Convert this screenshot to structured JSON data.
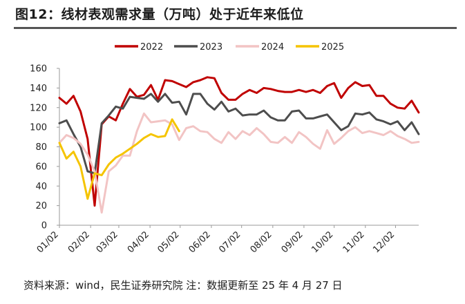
{
  "title": "图12：线材表观需求量（万吨）处于近年来低位",
  "source": "资料来源：wind，民生证券研究院 注：数据更新至 25 年 4 月 27 日",
  "chart_data": {
    "type": "line",
    "title": "线材表观需求量（万吨）",
    "xlabel": "",
    "ylabel": "",
    "ylim": [
      0,
      160
    ],
    "yticks": [
      0,
      20,
      40,
      60,
      80,
      100,
      120,
      140,
      160
    ],
    "xlim": [
      0,
      51
    ],
    "x_tick_labels": [
      {
        "label": "01/02",
        "week": 0
      },
      {
        "label": "02/02",
        "week": 4.43
      },
      {
        "label": "03/02",
        "week": 8.43
      },
      {
        "label": "04/02",
        "week": 12.86
      },
      {
        "label": "05/02",
        "week": 17.14
      },
      {
        "label": "06/02",
        "week": 21.57
      },
      {
        "label": "07/02",
        "week": 25.86
      },
      {
        "label": "08/02",
        "week": 30.29
      },
      {
        "label": "09/02",
        "week": 34.71
      },
      {
        "label": "10/02",
        "week": 39
      },
      {
        "label": "11/02",
        "week": 43.43
      },
      {
        "label": "12/02",
        "week": 47.71
      }
    ],
    "legend_position": "top",
    "grid": false,
    "series": [
      {
        "name": "2022",
        "color": "#c00000",
        "values": [
          130,
          124,
          132,
          116,
          88,
          20,
          103,
          111,
          107,
          124,
          139,
          131,
          133,
          143,
          128,
          148,
          147,
          144,
          141,
          146,
          148,
          151,
          150,
          135,
          128,
          128,
          134,
          138,
          135,
          140,
          139,
          137,
          136,
          136,
          138,
          136,
          138,
          135,
          142,
          145,
          130,
          140,
          146,
          142,
          143,
          132,
          132,
          124,
          120,
          119,
          127,
          115
        ]
      },
      {
        "name": "2023",
        "color": "#4d4d4d",
        "values": [
          104,
          107,
          93,
          80,
          55,
          53,
          104,
          112,
          121,
          119,
          131,
          130,
          129,
          134,
          126,
          134,
          125,
          126,
          113,
          134,
          134,
          124,
          118,
          126,
          116,
          119,
          112,
          113,
          113,
          117,
          110,
          107,
          107,
          116,
          117,
          109,
          109,
          111,
          113,
          105,
          97,
          101,
          114,
          113,
          115,
          108,
          106,
          103,
          106,
          97,
          105,
          93
        ]
      },
      {
        "name": "2024",
        "color": "#f2c4c4",
        "values": [
          84,
          92,
          89,
          83,
          72,
          55,
          13,
          55,
          61,
          71,
          71,
          96,
          114,
          105,
          106,
          107,
          103,
          87,
          99,
          101,
          96,
          95,
          88,
          84,
          95,
          88,
          96,
          92,
          99,
          93,
          85,
          84,
          90,
          84,
          95,
          90,
          83,
          78,
          97,
          83,
          89,
          96,
          100,
          94,
          96,
          94,
          92,
          96,
          91,
          88,
          84,
          85
        ]
      },
      {
        "name": "2025",
        "color": "#f5c400",
        "values": [
          84,
          68,
          75,
          60,
          27,
          53,
          51,
          62,
          69,
          73,
          78,
          83,
          89,
          93,
          90,
          91,
          108,
          96
        ]
      }
    ]
  }
}
